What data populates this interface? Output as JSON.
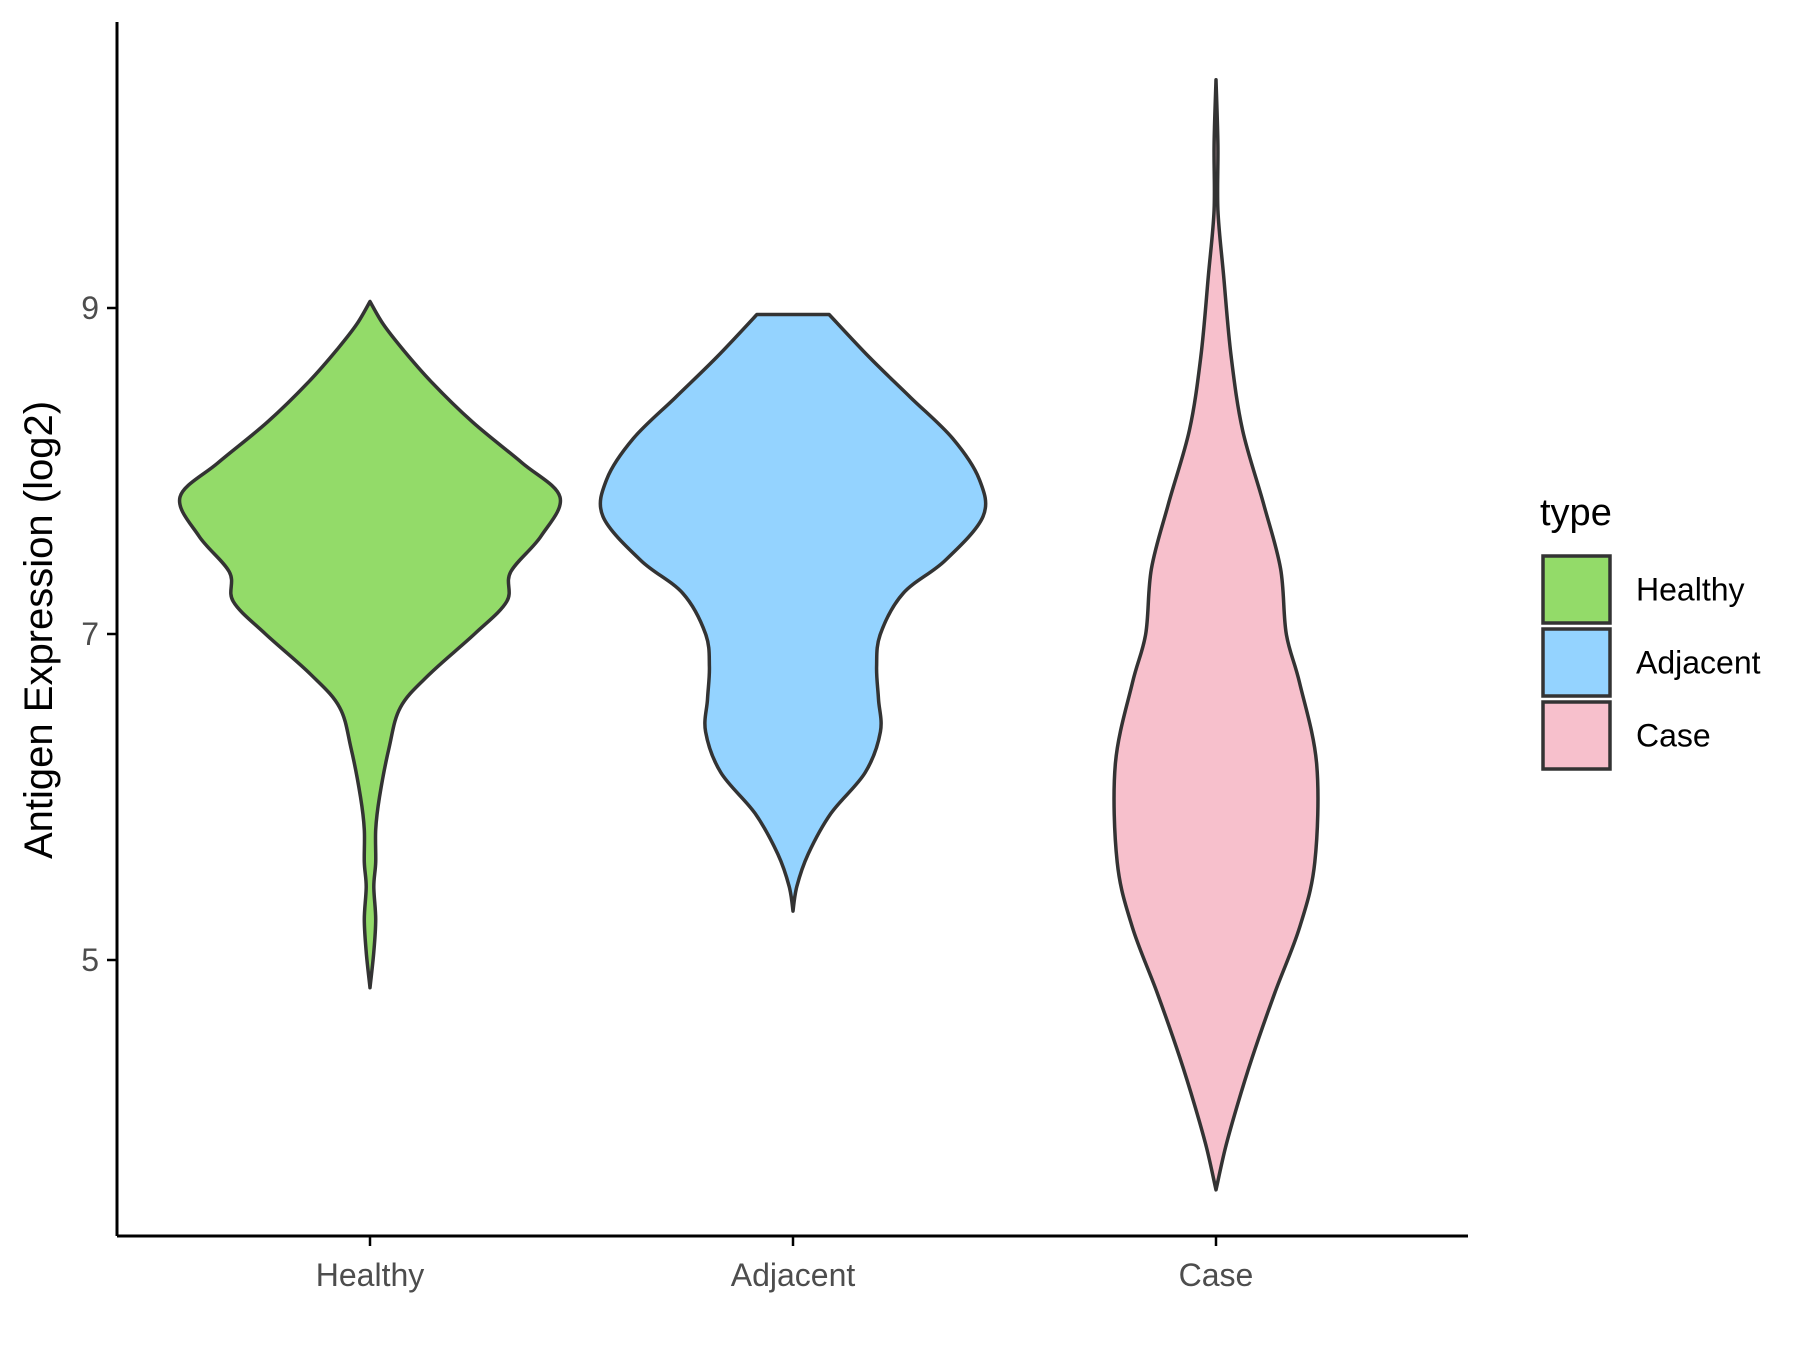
{
  "chart_data": {
    "type": "violin",
    "title": "",
    "xlabel": "",
    "ylabel": "Antigen Expression (log2)",
    "categories": [
      "Healthy",
      "Adjacent",
      "Case"
    ],
    "y_ticks": [
      5,
      7,
      9
    ],
    "y_tick_labels": [
      "5",
      "7",
      "9"
    ],
    "ylim": [
      3.33,
      10.8
    ],
    "grid": false,
    "legend": {
      "title": "type",
      "placement": "right",
      "entries": [
        "Healthy",
        "Adjacent",
        "Case"
      ]
    },
    "series": [
      {
        "name": "Healthy",
        "color": "#93DB69",
        "density_profile": [
          [
            4.83,
            0.0
          ],
          [
            5.05,
            0.02
          ],
          [
            5.25,
            0.03
          ],
          [
            5.45,
            0.02
          ],
          [
            5.6,
            0.03
          ],
          [
            5.8,
            0.03
          ],
          [
            6.0,
            0.05
          ],
          [
            6.3,
            0.1
          ],
          [
            6.55,
            0.16
          ],
          [
            6.75,
            0.31
          ],
          [
            7.0,
            0.55
          ],
          [
            7.2,
            0.72
          ],
          [
            7.38,
            0.74
          ],
          [
            7.6,
            0.9
          ],
          [
            7.84,
            1.0
          ],
          [
            8.05,
            0.8
          ],
          [
            8.3,
            0.54
          ],
          [
            8.55,
            0.32
          ],
          [
            8.75,
            0.17
          ],
          [
            8.9,
            0.07
          ],
          [
            9.04,
            0.0
          ]
        ],
        "top_width": 0.04
      },
      {
        "name": "Adjacent",
        "color": "#94D3FF",
        "density_profile": [
          [
            5.3,
            0.0
          ],
          [
            5.45,
            0.02
          ],
          [
            5.65,
            0.08
          ],
          [
            5.9,
            0.2
          ],
          [
            6.15,
            0.38
          ],
          [
            6.4,
            0.46
          ],
          [
            6.6,
            0.45
          ],
          [
            6.8,
            0.44
          ],
          [
            7.0,
            0.46
          ],
          [
            7.25,
            0.58
          ],
          [
            7.45,
            0.8
          ],
          [
            7.72,
            1.0
          ],
          [
            7.95,
            0.98
          ],
          [
            8.2,
            0.84
          ],
          [
            8.45,
            0.62
          ],
          [
            8.7,
            0.4
          ],
          [
            8.96,
            0.19
          ]
        ],
        "top_width": 0.19
      },
      {
        "name": "Case",
        "color": "#F7C0CC",
        "density_profile": [
          [
            3.59,
            0.0
          ],
          [
            3.85,
            0.05
          ],
          [
            4.1,
            0.11
          ],
          [
            4.4,
            0.19
          ],
          [
            4.8,
            0.31
          ],
          [
            5.2,
            0.44
          ],
          [
            5.6,
            0.52
          ],
          [
            6.2,
            0.53
          ],
          [
            6.7,
            0.44
          ],
          [
            7.0,
            0.37
          ],
          [
            7.4,
            0.34
          ],
          [
            7.8,
            0.25
          ],
          [
            8.25,
            0.14
          ],
          [
            8.7,
            0.08
          ],
          [
            9.2,
            0.04
          ],
          [
            9.6,
            0.01
          ],
          [
            10.0,
            0.01
          ],
          [
            10.4,
            0.0
          ]
        ],
        "top_width": 0.0
      }
    ]
  }
}
